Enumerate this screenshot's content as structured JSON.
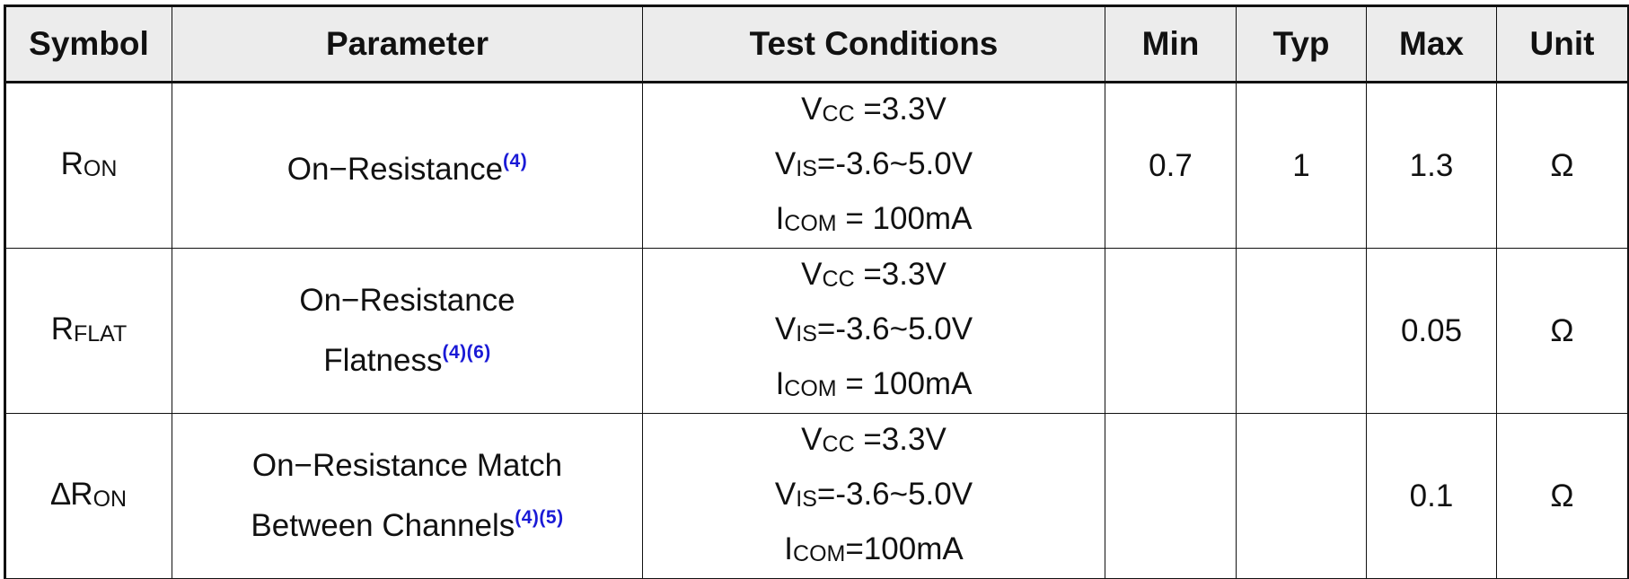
{
  "headers": {
    "symbol": "Symbol",
    "parameter": "Parameter",
    "test_conditions": "Test Conditions",
    "min": "Min",
    "typ": "Typ",
    "max": "Max",
    "unit": "Unit"
  },
  "rows": [
    {
      "symbol_main": "R",
      "symbol_sub": "ON",
      "parameter_line1": "On−Resistance",
      "parameter_line2": "",
      "parameter_ref": "(4)",
      "cond1_main": "V",
      "cond1_sub": "CC",
      "cond1_rest": " =3.3V",
      "cond2_main": "V",
      "cond2_sub": "IS",
      "cond2_rest": "=-3.6~5.0V",
      "cond3_main": "I",
      "cond3_sub": "COM",
      "cond3_rest": " = 100mA",
      "min": "0.7",
      "typ": "1",
      "max": "1.3",
      "unit": "Ω"
    },
    {
      "symbol_main": "R",
      "symbol_sub": "FLAT",
      "parameter_line1": "On−Resistance",
      "parameter_line2": "Flatness",
      "parameter_ref": "(4)(6)",
      "cond1_main": "V",
      "cond1_sub": "CC",
      "cond1_rest": " =3.3V",
      "cond2_main": "V",
      "cond2_sub": "IS",
      "cond2_rest": "=-3.6~5.0V",
      "cond3_main": "I",
      "cond3_sub": "COM",
      "cond3_rest": " = 100mA",
      "min": "",
      "typ": "",
      "max": "0.05",
      "unit": "Ω"
    },
    {
      "symbol_main": "∆R",
      "symbol_sub": "ON",
      "parameter_line1": "On−Resistance Match",
      "parameter_line2": "Between Channels",
      "parameter_ref": "(4)(5)",
      "cond1_main": "V",
      "cond1_sub": "CC",
      "cond1_rest": " =3.3V",
      "cond2_main": "V",
      "cond2_sub": "IS",
      "cond2_rest": "=-3.6~5.0V",
      "cond3_main": "I",
      "cond3_sub": "COM",
      "cond3_rest": "=100mA",
      "min": "",
      "typ": "",
      "max": "0.1",
      "unit": "Ω"
    }
  ]
}
